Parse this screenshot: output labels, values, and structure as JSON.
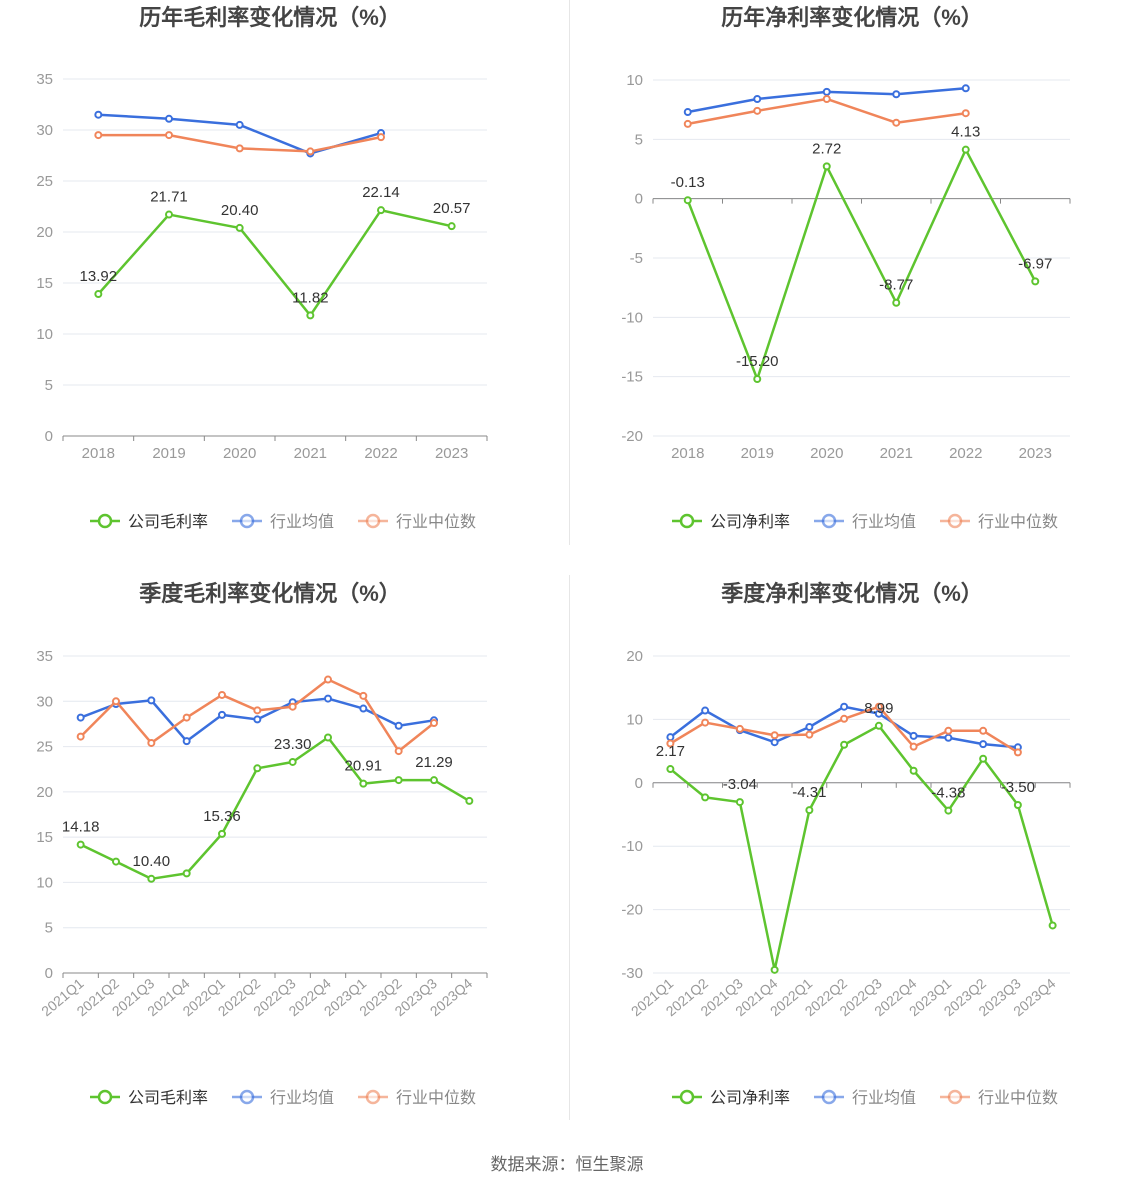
{
  "colors": {
    "company": "#5ec42f",
    "avg": "#3a6fdd",
    "median": "#f0855a",
    "axis": "#999999",
    "grid": "#e4e8ef",
    "label": "#333333",
    "title": "#444444"
  },
  "legend_icon": "circle-line-icon",
  "source": "数据来源：恒生聚源",
  "chart_data": [
    {
      "id": "annual-gross",
      "type": "line",
      "title": "历年毛利率变化情况（%）",
      "categories": [
        "2018",
        "2019",
        "2020",
        "2021",
        "2022",
        "2023"
      ],
      "ylim": [
        0,
        35
      ],
      "yticks": [
        "35",
        "30",
        "25",
        "20",
        "15",
        "10",
        "5",
        "0"
      ],
      "grid": true,
      "rotate_x_labels": false,
      "legend_position": "bottom",
      "series": [
        {
          "name": "公司毛利率",
          "key": "company",
          "values": [
            13.92,
            21.71,
            20.4,
            11.82,
            22.14,
            20.57
          ],
          "labels": [
            "13.92",
            "21.71",
            "20.40",
            "11.82",
            "22.14",
            "20.57"
          ]
        },
        {
          "name": "行业均值",
          "key": "avg",
          "values": [
            31.5,
            31.1,
            30.5,
            27.7,
            29.7,
            null
          ]
        },
        {
          "name": "行业中位数",
          "key": "median",
          "values": [
            29.5,
            29.5,
            28.2,
            27.9,
            29.3,
            null
          ]
        }
      ]
    },
    {
      "id": "annual-net",
      "type": "line",
      "title": "历年净利率变化情况（%）",
      "categories": [
        "2018",
        "2019",
        "2020",
        "2021",
        "2022",
        "2023"
      ],
      "ylim": [
        -20,
        10
      ],
      "yticks": [
        "10",
        "5",
        "0",
        "-5",
        "-10",
        "-15",
        "-20"
      ],
      "grid": true,
      "rotate_x_labels": false,
      "legend_position": "bottom",
      "series": [
        {
          "name": "公司净利率",
          "key": "company",
          "values": [
            -0.13,
            -15.2,
            2.72,
            -8.77,
            4.13,
            -6.97
          ],
          "labels": [
            "-0.13",
            "-15.20",
            "2.72",
            "-8.77",
            "4.13",
            "-6.97"
          ]
        },
        {
          "name": "行业均值",
          "key": "avg",
          "values": [
            7.3,
            8.4,
            9.0,
            8.8,
            9.3,
            null
          ]
        },
        {
          "name": "行业中位数",
          "key": "median",
          "values": [
            6.3,
            7.4,
            8.4,
            6.4,
            7.2,
            null
          ]
        }
      ]
    },
    {
      "id": "quarterly-gross",
      "type": "line",
      "title": "季度毛利率变化情况（%）",
      "categories": [
        "2021Q1",
        "2021Q2",
        "2021Q3",
        "2021Q4",
        "2022Q1",
        "2022Q2",
        "2022Q3",
        "2022Q4",
        "2023Q1",
        "2023Q2",
        "2023Q3",
        "2023Q4"
      ],
      "ylim": [
        0,
        35
      ],
      "yticks": [
        "35",
        "30",
        "25",
        "20",
        "15",
        "10",
        "5",
        "0"
      ],
      "grid": true,
      "rotate_x_labels": true,
      "legend_position": "bottom",
      "series": [
        {
          "name": "公司毛利率",
          "key": "company",
          "values": [
            14.18,
            12.3,
            10.4,
            11.0,
            15.36,
            22.6,
            23.3,
            26.0,
            20.91,
            21.3,
            21.29,
            19.0
          ],
          "labels": [
            "14.18",
            "",
            "10.40",
            "",
            "15.36",
            "",
            "23.30",
            "",
            "20.91",
            "",
            "21.29",
            ""
          ]
        },
        {
          "name": "行业均值",
          "key": "avg",
          "values": [
            28.2,
            29.7,
            30.1,
            25.6,
            28.5,
            28.0,
            29.9,
            30.3,
            29.2,
            27.3,
            27.9,
            null
          ]
        },
        {
          "name": "行业中位数",
          "key": "median",
          "values": [
            26.1,
            30.0,
            25.4,
            28.2,
            30.7,
            29.0,
            29.4,
            32.4,
            30.6,
            24.5,
            27.6,
            null
          ]
        }
      ]
    },
    {
      "id": "quarterly-net",
      "type": "line",
      "title": "季度净利率变化情况（%）",
      "categories": [
        "2021Q1",
        "2021Q2",
        "2021Q3",
        "2021Q4",
        "2022Q1",
        "2022Q2",
        "2022Q3",
        "2022Q4",
        "2023Q1",
        "2023Q2",
        "2023Q3",
        "2023Q4"
      ],
      "ylim": [
        -30,
        20
      ],
      "yticks": [
        "20",
        "10",
        "0",
        "-10",
        "-20",
        "-30"
      ],
      "grid": true,
      "rotate_x_labels": true,
      "legend_position": "bottom",
      "series": [
        {
          "name": "公司净利率",
          "key": "company",
          "values": [
            2.17,
            -2.3,
            -3.04,
            -29.5,
            -4.31,
            6.0,
            8.99,
            1.9,
            -4.38,
            3.8,
            -3.5,
            -22.5
          ],
          "labels": [
            "2.17",
            "",
            "-3.04",
            "",
            "-4.31",
            "",
            "8.99",
            "",
            "-4.38",
            "",
            "-3.50",
            ""
          ]
        },
        {
          "name": "行业均值",
          "key": "avg",
          "values": [
            7.2,
            11.4,
            8.3,
            6.4,
            8.8,
            12.0,
            10.9,
            7.4,
            7.1,
            6.1,
            5.6,
            null
          ]
        },
        {
          "name": "行业中位数",
          "key": "median",
          "values": [
            6.2,
            9.5,
            8.5,
            7.5,
            7.6,
            10.1,
            12.0,
            5.7,
            8.2,
            8.2,
            4.8,
            null
          ]
        }
      ]
    }
  ]
}
